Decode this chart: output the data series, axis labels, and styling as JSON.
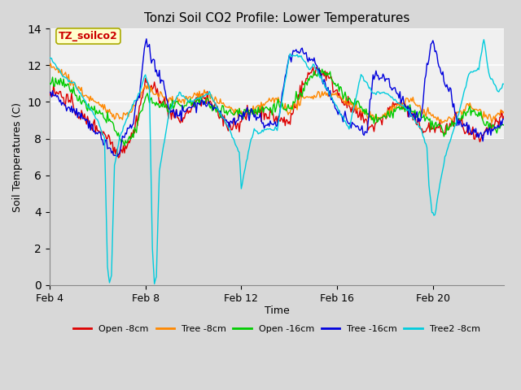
{
  "title": "Tonzi Soil CO2 Profile: Lower Temperatures",
  "xlabel": "Time",
  "ylabel": "Soil Temperatures (C)",
  "ylim": [
    0,
    14
  ],
  "yticks": [
    0,
    2,
    4,
    6,
    8,
    10,
    12,
    14
  ],
  "annotation_text": "TZ_soilco2",
  "annotation_color": "#cc0000",
  "annotation_bg": "#ffffcc",
  "annotation_border": "#aaaa00",
  "series_colors": {
    "Open -8cm": "#dd0000",
    "Tree -8cm": "#ff8800",
    "Open -16cm": "#00cc00",
    "Tree -16cm": "#0000dd",
    "Tree2 -8cm": "#00ccdd"
  },
  "bg_color": "#d8d8d8",
  "plot_bg_upper": "#f0f0f0",
  "plot_bg_lower": "#d0d0d0",
  "grid_color": "#cccccc",
  "x_tick_labels": [
    "Feb 4",
    "Feb 8",
    "Feb 12",
    "Feb 16",
    "Feb 20"
  ],
  "x_tick_positions": [
    0,
    96,
    192,
    288,
    384
  ],
  "n_points": 456
}
